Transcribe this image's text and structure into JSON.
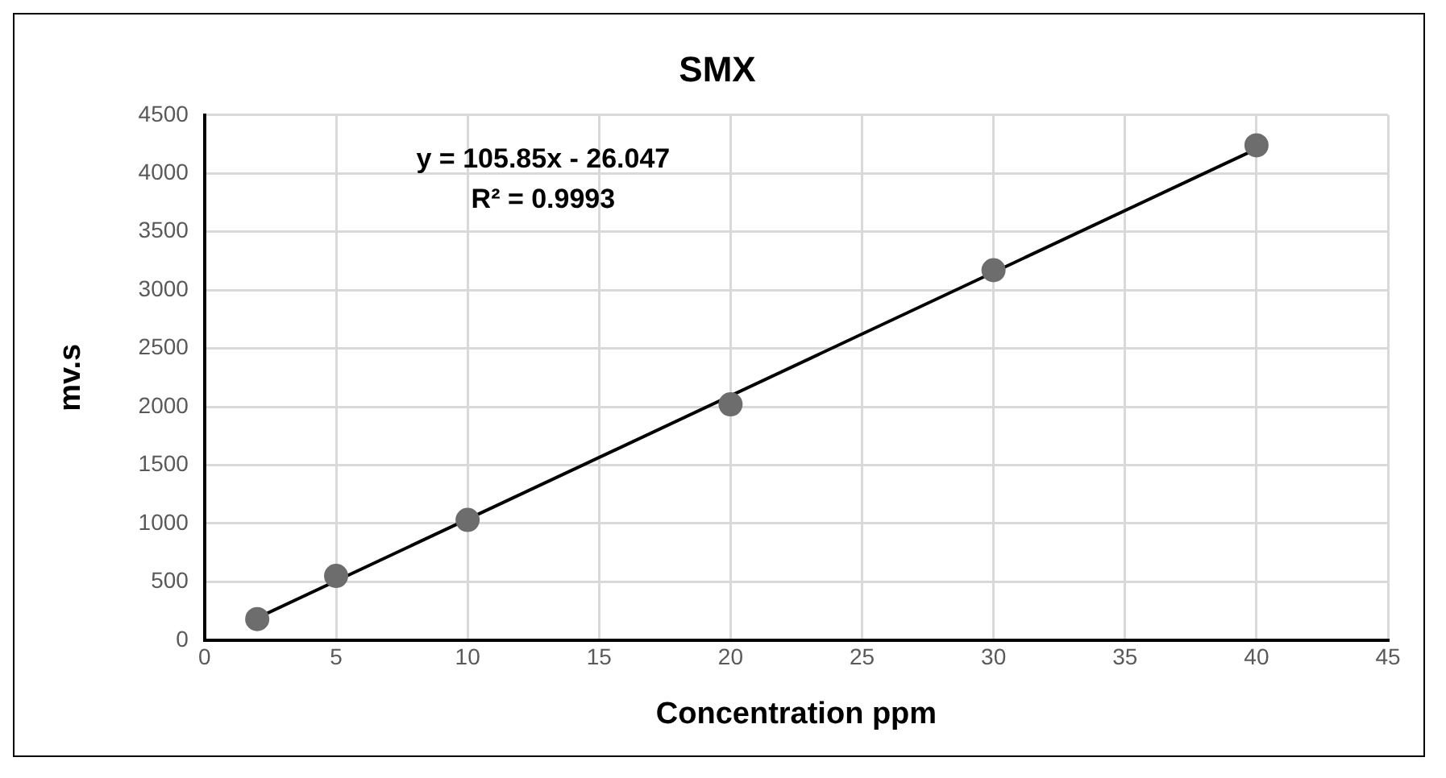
{
  "chart_data": {
    "type": "scatter",
    "title": "SMX",
    "xlabel": "Concentration ppm",
    "ylabel": "mv.s",
    "series": [
      {
        "color": "#6d6d6d",
        "x": [
          2,
          5,
          10,
          20,
          30,
          40
        ],
        "values": [
          180,
          550,
          1030,
          2020,
          3170,
          4240
        ],
        "marker": "circle"
      },
      {
        "type": "line",
        "color": "#000000",
        "x": [
          2,
          40
        ],
        "values": [
          190,
          4210
        ],
        "marker": "none"
      }
    ],
    "annotations": [
      "y = 105.85x - 26.047",
      "R² = 0.9993"
    ],
    "xlim": [
      0,
      45
    ],
    "xticks": [
      0,
      5,
      10,
      15,
      20,
      25,
      30,
      35,
      40,
      45
    ],
    "ylim": [
      0,
      4500
    ],
    "yticks": [
      0,
      500,
      1000,
      1500,
      2000,
      2500,
      3000,
      3500,
      4000,
      4500
    ],
    "grid": true,
    "legend": false
  }
}
